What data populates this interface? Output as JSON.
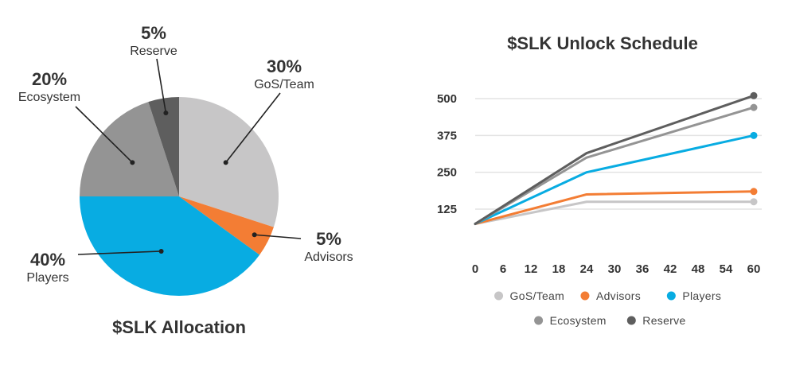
{
  "chart_data": [
    {
      "type": "pie",
      "title": "$SLK Allocation",
      "slices": [
        {
          "name": "GoS/Team",
          "pct_label": "30%",
          "value": 30,
          "color": "#c7c6c7"
        },
        {
          "name": "Advisors",
          "pct_label": "5%",
          "value": 5,
          "color": "#f37d34"
        },
        {
          "name": "Players",
          "pct_label": "40%",
          "value": 40,
          "color": "#08ace2"
        },
        {
          "name": "Ecosystem",
          "pct_label": "20%",
          "value": 20,
          "color": "#949494"
        },
        {
          "name": "Reserve",
          "pct_label": "5%",
          "value": 5,
          "color": "#5e5e5e"
        }
      ]
    },
    {
      "type": "line",
      "title": "$SLK Unlock Schedule",
      "x": [
        0,
        24,
        60
      ],
      "xticks": [
        "0",
        "6",
        "12",
        "18",
        "24",
        "30",
        "36",
        "42",
        "48",
        "54",
        "60"
      ],
      "yticks": [
        "125",
        "250",
        "375",
        "500"
      ],
      "xlim": [
        0,
        60
      ],
      "grid": true,
      "legend_position": "bottom",
      "series": [
        {
          "name": "GoS/Team",
          "color": "#c7c6c7",
          "values": [
            75,
            150,
            150
          ]
        },
        {
          "name": "Advisors",
          "color": "#f37d34",
          "values": [
            75,
            175,
            185
          ]
        },
        {
          "name": "Players",
          "color": "#08ace2",
          "values": [
            75,
            250,
            375
          ]
        },
        {
          "name": "Ecosystem",
          "color": "#949494",
          "values": [
            75,
            300,
            470
          ]
        },
        {
          "name": "Reserve",
          "color": "#5e5e5e",
          "values": [
            75,
            315,
            510
          ]
        }
      ]
    }
  ]
}
